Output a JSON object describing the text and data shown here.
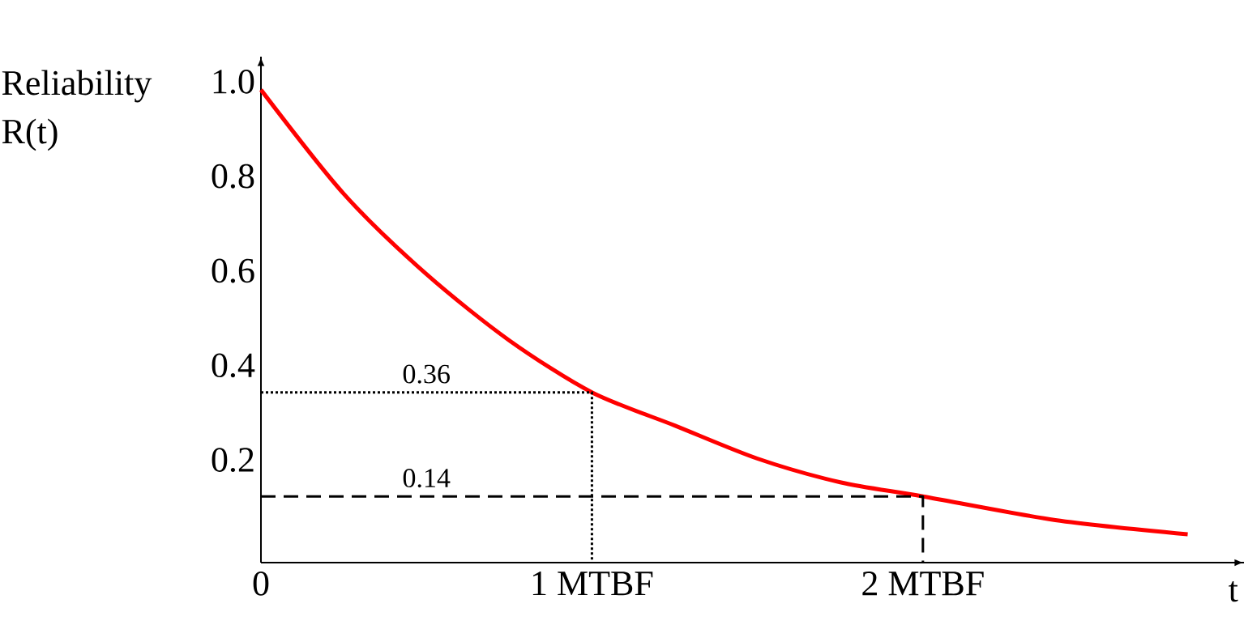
{
  "chart_data": {
    "type": "line",
    "xlabel": "t",
    "ylabel": "Reliability R(t)",
    "x": [
      0,
      0.25,
      0.5,
      0.75,
      1,
      1.25,
      1.5,
      1.75,
      2,
      2.4,
      2.8
    ],
    "series": [
      {
        "color": "#ff0000",
        "line_style": "solid",
        "values": [
          1.0,
          0.78,
          0.61,
          0.47,
          0.36,
          0.29,
          0.22,
          0.17,
          0.14,
          0.09,
          0.06
        ]
      },
      {
        "type": "line",
        "line_style": "dotted",
        "color": "#000000",
        "x": [
          0,
          1,
          1
        ],
        "values": [
          0.36,
          0.36,
          0
        ]
      },
      {
        "type": "line",
        "line_style": "dashed",
        "color": "#000000",
        "x": [
          0,
          2,
          2
        ],
        "values": [
          0.14,
          0.14,
          0
        ]
      }
    ],
    "xlim": [
      0,
      2.97
    ],
    "ylim": [
      0,
      1.07
    ],
    "xticks": [
      0,
      {
        "value": 1,
        "label": "1 MTBF"
      },
      {
        "value": 2,
        "label": "2 MTBF"
      }
    ],
    "yticks": [
      0.2,
      0.4,
      0.6,
      0.8,
      {
        "value": 1.0,
        "label": "1.0"
      }
    ],
    "annotations": [
      {
        "text": "0.36",
        "x": 0.5,
        "y": 0.36
      },
      {
        "text": "0.14",
        "x": 0.5,
        "y": 0.14
      }
    ],
    "grid": false,
    "marker": "none"
  }
}
